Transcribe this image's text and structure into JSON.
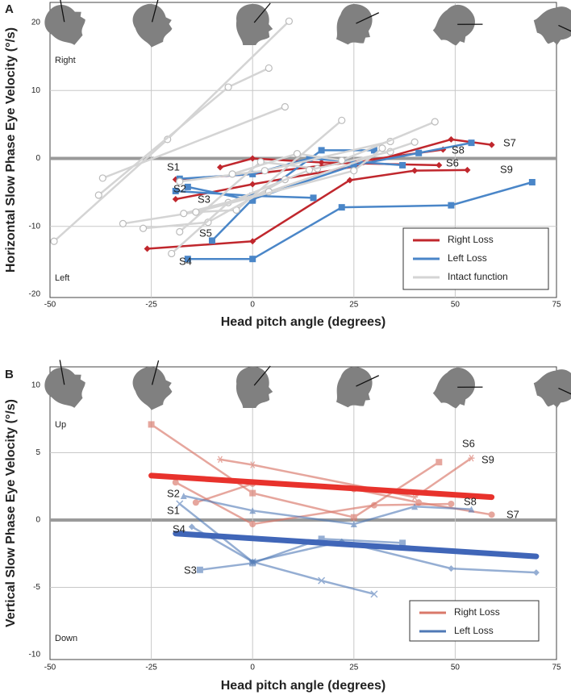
{
  "chart_data": [
    {
      "type": "line",
      "panel_label": "A",
      "y_label": "Horizontal Slow Phase Eye Velocity (°/s)",
      "x_label": "Head pitch angle (degrees)",
      "annotations": [
        "Right",
        "Left"
      ],
      "subject_labels": [
        "S1",
        "S2",
        "S3",
        "S4",
        "S5",
        "S6",
        "S7",
        "S8",
        "S9"
      ],
      "xlim": [
        -50,
        75
      ],
      "xticks": [
        -50,
        -25,
        0,
        25,
        50,
        75
      ],
      "ylim": [
        -20,
        20
      ],
      "yticks": [
        20,
        10,
        0,
        -10,
        -20
      ],
      "grid": true,
      "series": [
        {
          "name": "Right Loss",
          "color": "#c0272d",
          "width": 2.5,
          "opacity": 1,
          "marker": "diamond",
          "lines": [
            {
              "x": [
                -26,
                0,
                24,
                40,
                53
              ],
              "values": [
                -13.3,
                -12.2,
                -3.2,
                -1.8,
                -1.7
              ]
            },
            {
              "x": [
                -19,
                0,
                25,
                49,
                59
              ],
              "values": [
                -6,
                -3.8,
                -1.2,
                2.8,
                2
              ]
            },
            {
              "x": [
                -8,
                0,
                17,
                46
              ],
              "values": [
                -1.3,
                0,
                -0.6,
                -1
              ]
            },
            {
              "x": [
                -19,
                0,
                25,
                47
              ],
              "values": [
                -3.1,
                -2.3,
                -0.5,
                1.3
              ]
            }
          ]
        },
        {
          "name": "Left Loss",
          "color": "#4a86c8",
          "width": 2.5,
          "opacity": 1,
          "marker": "square",
          "lines": [
            {
              "x": [
                -16,
                0,
                22,
                49,
                69
              ],
              "values": [
                -14.8,
                -14.8,
                -7.2,
                -6.9,
                -3.5
              ]
            },
            {
              "x": [
                -19,
                0,
                15
              ],
              "values": [
                -4.8,
                -5.5,
                -5.8
              ]
            },
            {
              "x": [
                -16,
                0,
                17,
                30
              ],
              "values": [
                -4.2,
                -6.2,
                1.2,
                1.2
              ]
            },
            {
              "x": [
                -10,
                0,
                25,
                41,
                54
              ],
              "values": [
                -12.1,
                -6,
                -1,
                0.8,
                2.3
              ]
            },
            {
              "x": [
                -18,
                0,
                14,
                37
              ],
              "values": [
                -3,
                -2.3,
                0,
                -1
              ]
            }
          ]
        },
        {
          "name": "Intact function",
          "color": "#d4d4d4",
          "width": 2.5,
          "opacity": 1,
          "marker": "circle",
          "lines": [
            {
              "x": [
                -49,
                -21,
                9
              ],
              "values": [
                -12.2,
                2.8,
                20.2
              ]
            },
            {
              "x": [
                -38,
                -6,
                4
              ],
              "values": [
                -5.4,
                10.5,
                13.3
              ]
            },
            {
              "x": [
                -37,
                8
              ],
              "values": [
                -2.9,
                7.6
              ]
            },
            {
              "x": [
                -32,
                -14,
                -4,
                22
              ],
              "values": [
                -9.6,
                -7.9,
                -7.6,
                5.6
              ]
            },
            {
              "x": [
                -27,
                -11,
                8
              ],
              "values": [
                -10.3,
                -9.4,
                -3.1
              ]
            },
            {
              "x": [
                -18,
                2,
                16
              ],
              "values": [
                -10.8,
                -0.5,
                -1.5
              ]
            },
            {
              "x": [
                -20,
                -6,
                14,
                34
              ],
              "values": [
                -14,
                -6.5,
                -1.7,
                1
              ]
            },
            {
              "x": [
                -18,
                3,
                34
              ],
              "values": [
                -3.4,
                -1.8,
                2.5
              ]
            },
            {
              "x": [
                -17,
                4,
                40
              ],
              "values": [
                -8.1,
                -4.9,
                2.4
              ]
            },
            {
              "x": [
                -5,
                11,
                22,
                45
              ],
              "values": [
                -2.3,
                0.7,
                -0.3,
                5.4
              ]
            },
            {
              "x": [
                -14,
                25,
                32
              ],
              "values": [
                -7.9,
                -1.8,
                1.5
              ]
            }
          ]
        }
      ]
    },
    {
      "type": "line",
      "panel_label": "B",
      "y_label": "Vertical Slow Phase Eye Velocity (°/s)",
      "x_label": "Head pitch angle (degrees)",
      "annotations": [
        "Up",
        "Down"
      ],
      "subject_labels": [
        "S6",
        "S9",
        "S8",
        "S7",
        "S2",
        "S1",
        "S4",
        "S3"
      ],
      "xlim": [
        -50,
        75
      ],
      "xticks": [
        -50,
        -25,
        0,
        25,
        50,
        75
      ],
      "ylim": [
        -10,
        10
      ],
      "yticks": [
        10,
        5,
        0,
        -5,
        -10
      ],
      "grid": true,
      "series": [
        {
          "name": "Right Loss",
          "color": "#d9786a",
          "width": 2.5,
          "opacity": 0.65,
          "lines": [
            {
              "marker": "square",
              "x": [
                -25,
                0,
                25,
                46
              ],
              "values": [
                7.1,
                2,
                0.2,
                4.3
              ]
            },
            {
              "marker": "asterisk",
              "x": [
                -8,
                0,
                40,
                54
              ],
              "values": [
                4.5,
                4.1,
                1.7,
                4.6
              ]
            },
            {
              "marker": "circle-fill",
              "x": [
                -19,
                0,
                30,
                49
              ],
              "values": [
                2.8,
                -0.3,
                1.1,
                1.2
              ]
            },
            {
              "marker": "circle-fill",
              "x": [
                -14,
                0,
                25,
                41,
                59
              ],
              "values": [
                1.3,
                2.7,
                2.3,
                1.3,
                0.4
              ]
            }
          ]
        },
        {
          "name": "Left Loss",
          "color": "#4f79b6",
          "width": 2.5,
          "opacity": 0.6,
          "lines": [
            {
              "marker": "triangle",
              "x": [
                -17,
                0,
                25,
                40,
                54
              ],
              "values": [
                1.8,
                0.7,
                -0.3,
                1,
                0.8
              ]
            },
            {
              "marker": "x",
              "x": [
                -18,
                0,
                17,
                30
              ],
              "values": [
                1.2,
                -3.1,
                -4.5,
                -5.5
              ]
            },
            {
              "marker": "diamond",
              "x": [
                -15,
                0,
                22,
                49,
                70
              ],
              "values": [
                -0.5,
                -3.1,
                -1.6,
                -3.6,
                -3.9
              ]
            },
            {
              "marker": "square",
              "x": [
                -13,
                0,
                17,
                37
              ],
              "values": [
                -3.7,
                -3.2,
                -1.4,
                -1.7
              ]
            }
          ]
        },
        {
          "color": "#e8322c",
          "width": 7,
          "opacity": 1,
          "lines": [
            {
              "x": [
                -25,
                59
              ],
              "values": [
                3.3,
                1.7
              ]
            }
          ]
        },
        {
          "color": "#4066b8",
          "width": 7,
          "opacity": 1,
          "lines": [
            {
              "x": [
                -19,
                70
              ],
              "values": [
                -1,
                -2.7
              ]
            }
          ]
        }
      ]
    }
  ]
}
